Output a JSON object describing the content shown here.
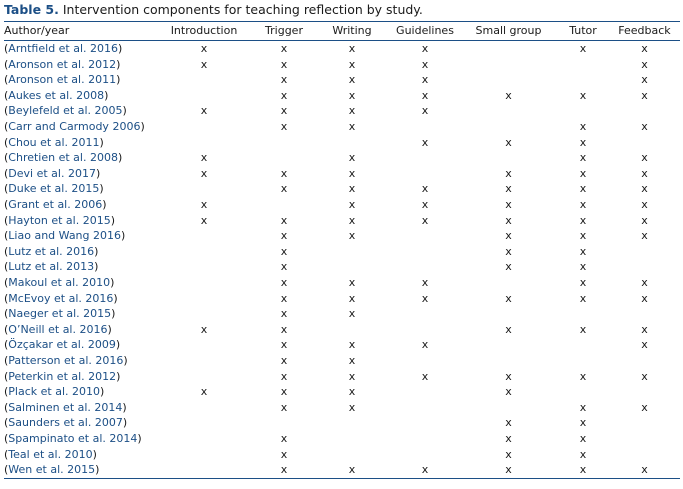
{
  "caption": {
    "label": "Table 5.",
    "title": "Intervention components for teaching reflection by study."
  },
  "columns": [
    "Author/year",
    "Introduction",
    "Trigger",
    "Writing",
    "Guidelines",
    "Small group",
    "Tutor",
    "Feedback"
  ],
  "mark": "x",
  "rows": [
    {
      "study": "Arntfield et al. 2016",
      "marks": [
        1,
        1,
        1,
        1,
        0,
        1,
        1
      ]
    },
    {
      "study": "Aronson et al. 2012",
      "marks": [
        1,
        1,
        1,
        1,
        0,
        0,
        1
      ]
    },
    {
      "study": "Aronson et al. 2011",
      "marks": [
        0,
        1,
        1,
        1,
        0,
        0,
        1
      ]
    },
    {
      "study": "Aukes et al. 2008",
      "marks": [
        0,
        1,
        1,
        1,
        1,
        1,
        1
      ]
    },
    {
      "study": "Beylefeld et al. 2005",
      "marks": [
        1,
        1,
        1,
        1,
        0,
        0,
        0
      ]
    },
    {
      "study": "Carr and Carmody 2006",
      "marks": [
        0,
        1,
        1,
        0,
        0,
        1,
        1
      ]
    },
    {
      "study": "Chou et al. 2011",
      "marks": [
        0,
        0,
        0,
        1,
        1,
        1,
        0
      ]
    },
    {
      "study": "Chretien et al. 2008",
      "marks": [
        1,
        0,
        1,
        0,
        0,
        1,
        1
      ]
    },
    {
      "study": "Devi et al. 2017",
      "marks": [
        1,
        1,
        1,
        0,
        1,
        1,
        1
      ]
    },
    {
      "study": "Duke et al. 2015",
      "marks": [
        0,
        1,
        1,
        1,
        1,
        1,
        1
      ]
    },
    {
      "study": "Grant et al. 2006",
      "marks": [
        1,
        0,
        1,
        1,
        1,
        1,
        1
      ]
    },
    {
      "study": "Hayton et al. 2015",
      "marks": [
        1,
        1,
        1,
        1,
        1,
        1,
        1
      ]
    },
    {
      "study": "Liao and Wang 2016",
      "marks": [
        0,
        1,
        1,
        0,
        1,
        1,
        1
      ]
    },
    {
      "study": "Lutz et al. 2016",
      "marks": [
        0,
        1,
        0,
        0,
        1,
        1,
        0
      ]
    },
    {
      "study": "Lutz et al. 2013",
      "marks": [
        0,
        1,
        0,
        0,
        1,
        1,
        0
      ]
    },
    {
      "study": "Makoul et al. 2010",
      "marks": [
        0,
        1,
        1,
        1,
        0,
        1,
        1
      ]
    },
    {
      "study": "McEvoy et al. 2016",
      "marks": [
        0,
        1,
        1,
        1,
        1,
        1,
        1
      ]
    },
    {
      "study": "Naeger et al. 2015",
      "marks": [
        0,
        1,
        1,
        0,
        0,
        0,
        0
      ]
    },
    {
      "study": "O’Neill et al. 2016",
      "marks": [
        1,
        1,
        0,
        0,
        1,
        1,
        1
      ]
    },
    {
      "study": "Özçakar et al. 2009",
      "marks": [
        0,
        1,
        1,
        1,
        0,
        0,
        1
      ]
    },
    {
      "study": "Patterson et al. 2016",
      "marks": [
        0,
        1,
        1,
        0,
        0,
        0,
        0
      ]
    },
    {
      "study": "Peterkin et al. 2012",
      "marks": [
        0,
        1,
        1,
        1,
        1,
        1,
        1
      ]
    },
    {
      "study": "Plack et al. 2010",
      "marks": [
        1,
        1,
        1,
        0,
        1,
        0,
        0
      ]
    },
    {
      "study": "Salminen et al. 2014",
      "marks": [
        0,
        1,
        1,
        0,
        0,
        1,
        1
      ]
    },
    {
      "study": "Saunders et al. 2007",
      "marks": [
        0,
        0,
        0,
        0,
        1,
        1,
        0
      ]
    },
    {
      "study": "Spampinato et al. 2014",
      "marks": [
        0,
        1,
        0,
        0,
        1,
        1,
        0
      ]
    },
    {
      "study": "Teal et al. 2010",
      "marks": [
        0,
        1,
        0,
        0,
        1,
        1,
        0
      ]
    },
    {
      "study": "Wen et al. 2015",
      "marks": [
        0,
        1,
        1,
        1,
        1,
        1,
        1
      ]
    }
  ],
  "colors": {
    "rule": "#1c4f86",
    "citation": "#1c4f86",
    "text": "#1a1a1a"
  }
}
